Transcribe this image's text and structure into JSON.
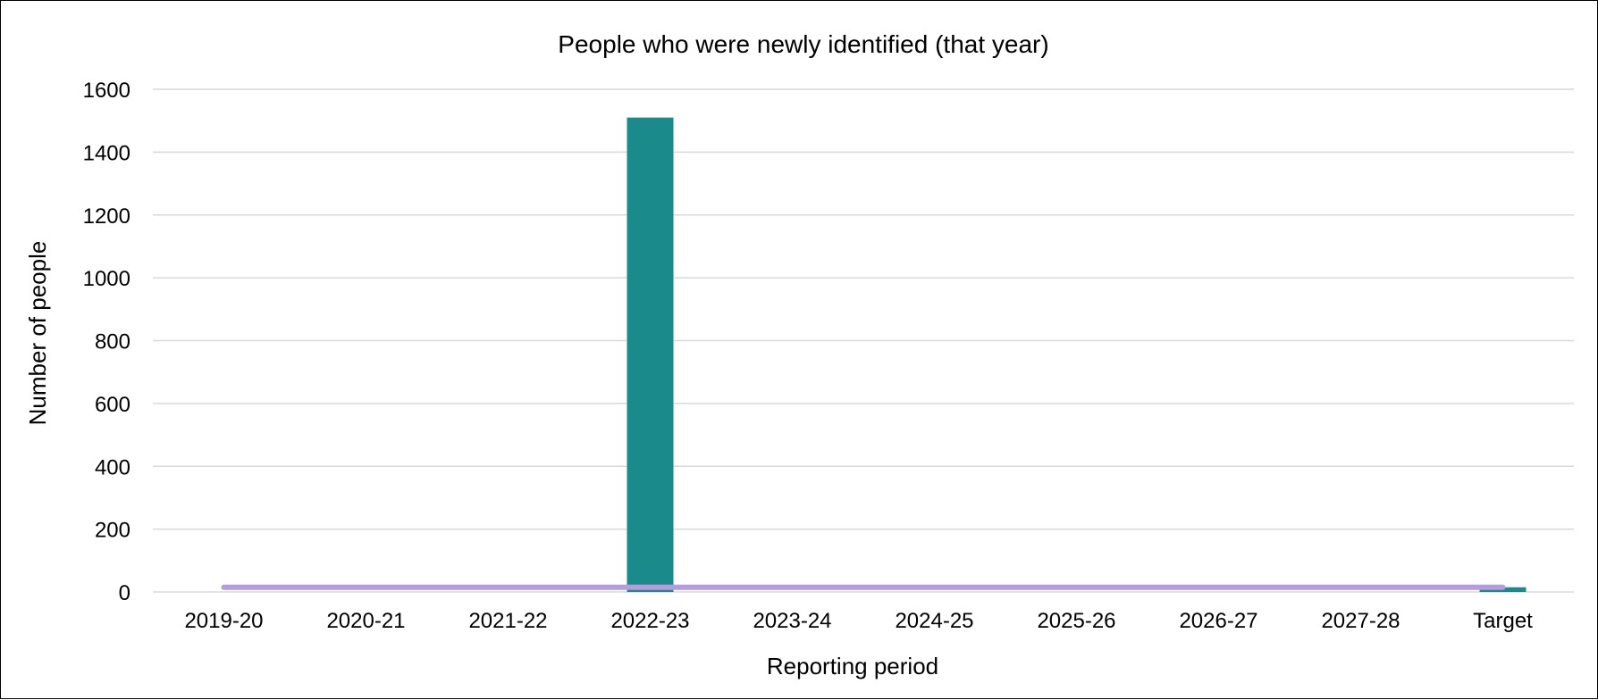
{
  "chart_data": {
    "type": "bar",
    "title": "People who were newly identified (that year)",
    "xlabel": "Reporting period",
    "ylabel": "Number of people",
    "ylim": [
      0,
      1600
    ],
    "yticks": [
      "0",
      "200",
      "400",
      "600",
      "800",
      "1000",
      "1200",
      "1400",
      "1600"
    ],
    "categories": [
      "2019-20",
      "2020-21",
      "2021-22",
      "2022-23",
      "2023-24",
      "2024-25",
      "2025-26",
      "2026-27",
      "2027-28",
      "Target"
    ],
    "series": [
      {
        "type": "bar",
        "color": "#1b8a8a",
        "values": [
          0,
          0,
          0,
          1510,
          0,
          0,
          0,
          0,
          0,
          15
        ]
      },
      {
        "type": "line",
        "color": "#b39ddb",
        "values": [
          15,
          15,
          15,
          15,
          15,
          15,
          15,
          15,
          15,
          15
        ]
      }
    ],
    "grid": true,
    "legend": "none"
  }
}
